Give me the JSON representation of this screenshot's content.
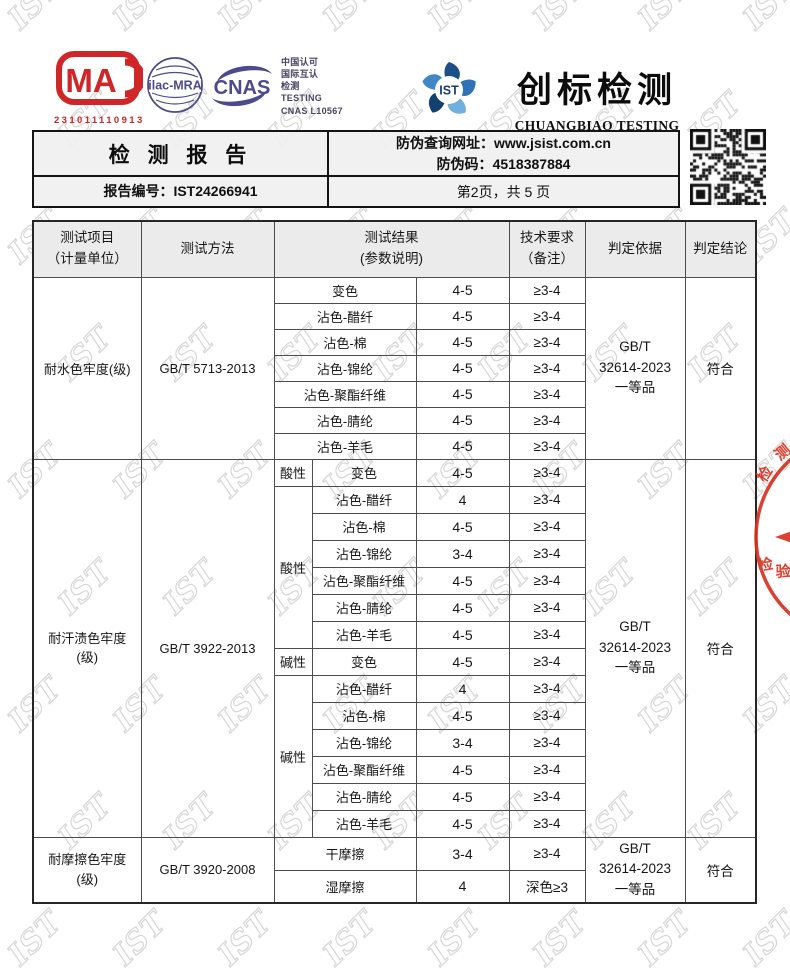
{
  "watermark": {
    "text": "IST"
  },
  "logos": {
    "cma": {
      "text": "MA",
      "number": "231011110913"
    },
    "ilac": {
      "text": "ilac-MRA"
    },
    "cnas": {
      "text": "CNAS"
    },
    "accreditation": [
      "中国认可",
      "国际互认",
      "检测",
      "TESTING",
      "CNAS L10567"
    ],
    "ist": {
      "text": "IST"
    },
    "company_cn": "创标检测",
    "company_en": "CHUANGBIAO TESTING"
  },
  "header": {
    "report_title": "检 测 报 告",
    "report_no_label": "报告编号：",
    "report_no": "IST24266941",
    "antifake_url_label": "防伪查询网址：",
    "antifake_url": "www.jsist.com.cn",
    "antifake_code_label": "防伪码：",
    "antifake_code": "4518387884",
    "page_info": "第2页，共 5 页"
  },
  "stamp": {
    "arc_chars": [
      "检",
      "测",
      "检",
      "验",
      "检"
    ]
  },
  "colors": {
    "accent_red": "#d02627",
    "accent_blue": "#4c4a8c",
    "stamp_red": "#d9301f"
  },
  "table": {
    "columns": {
      "item_line1": "测试项目",
      "item_line2": "（计量单位）",
      "method": "测试方法",
      "result_line1": "测试结果",
      "result_line2": "(参数说明)",
      "req_line1": "技术要求",
      "req_line2": "（备注）",
      "basis": "判定依据",
      "conclusion": "判定结论"
    },
    "groups": [
      {
        "item": [
          "耐水色牢度(级)"
        ],
        "method": "GB/T 5713-2013",
        "has_sub_column": false,
        "basis": [
          "GB/T",
          "32614-2023",
          "一等品"
        ],
        "conclusion": "符合",
        "rows": [
          {
            "label": "变色",
            "value": "4-5",
            "req": "≥3-4"
          },
          {
            "label": "沾色-醋纤",
            "value": "4-5",
            "req": "≥3-4"
          },
          {
            "label": "沾色-棉",
            "value": "4-5",
            "req": "≥3-4"
          },
          {
            "label": "沾色-锦纶",
            "value": "4-5",
            "req": "≥3-4"
          },
          {
            "label": "沾色-聚酯纤维",
            "value": "4-5",
            "req": "≥3-4"
          },
          {
            "label": "沾色-腈纶",
            "value": "4-5",
            "req": "≥3-4"
          },
          {
            "label": "沾色-羊毛",
            "value": "4-5",
            "req": "≥3-4"
          }
        ]
      },
      {
        "item": [
          "耐汗渍色牢度",
          "(级)"
        ],
        "method": "GB/T 3922-2013",
        "has_sub_column": true,
        "basis": [
          "GB/T",
          "32614-2023",
          "一等品"
        ],
        "conclusion": "符合",
        "rows": [
          {
            "sub": "酸性",
            "sub_span": 1,
            "label": "变色",
            "value": "4-5",
            "req": "≥3-4"
          },
          {
            "sub": "酸性",
            "sub_span": 6,
            "label": "沾色-醋纤",
            "value": "4",
            "req": "≥3-4"
          },
          {
            "label": "沾色-棉",
            "value": "4-5",
            "req": "≥3-4"
          },
          {
            "label": "沾色-锦纶",
            "value": "3-4",
            "req": "≥3-4"
          },
          {
            "label": "沾色-聚酯纤维",
            "value": "4-5",
            "req": "≥3-4"
          },
          {
            "label": "沾色-腈纶",
            "value": "4-5",
            "req": "≥3-4"
          },
          {
            "label": "沾色-羊毛",
            "value": "4-5",
            "req": "≥3-4"
          },
          {
            "sub": "碱性",
            "sub_span": 1,
            "label": "变色",
            "value": "4-5",
            "req": "≥3-4"
          },
          {
            "sub": "碱性",
            "sub_span": 6,
            "label": "沾色-醋纤",
            "value": "4",
            "req": "≥3-4"
          },
          {
            "label": "沾色-棉",
            "value": "4-5",
            "req": "≥3-4"
          },
          {
            "label": "沾色-锦纶",
            "value": "3-4",
            "req": "≥3-4"
          },
          {
            "label": "沾色-聚酯纤维",
            "value": "4-5",
            "req": "≥3-4"
          },
          {
            "label": "沾色-腈纶",
            "value": "4-5",
            "req": "≥3-4"
          },
          {
            "label": "沾色-羊毛",
            "value": "4-5",
            "req": "≥3-4"
          }
        ]
      },
      {
        "item": [
          "耐摩擦色牢度",
          "(级)"
        ],
        "method": "GB/T 3920-2008",
        "has_sub_column": false,
        "basis": [
          "GB/T",
          "32614-2023",
          "一等品"
        ],
        "conclusion": "符合",
        "rows": [
          {
            "label": "干摩擦",
            "value": "3-4",
            "req": "≥3-4"
          },
          {
            "label": "湿摩擦",
            "value": "4",
            "req": "深色≥3"
          }
        ]
      }
    ]
  }
}
